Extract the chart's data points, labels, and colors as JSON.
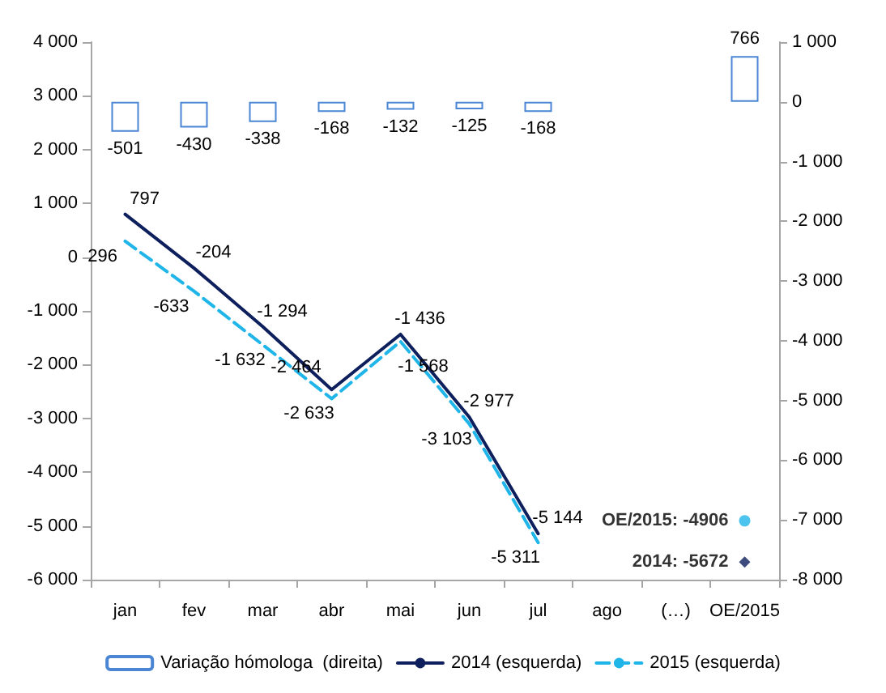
{
  "chart_data": {
    "type": "line",
    "categories": [
      "jan",
      "fev",
      "mar",
      "abr",
      "mai",
      "jun",
      "jul",
      "ago",
      "(…)",
      "OE/2015"
    ],
    "series": [
      {
        "name": "Variação hómologa  (direita)",
        "type": "bar",
        "axis": "y2",
        "color": "#4a86d4",
        "values": [
          -501,
          -430,
          -338,
          -168,
          -132,
          -125,
          -168,
          null,
          null,
          766
        ],
        "value_labels": [
          "-501",
          "-430",
          "-338",
          "-168",
          "-132",
          "-125",
          "-168",
          null,
          null,
          "766"
        ]
      },
      {
        "name": "2014 (esquerda)",
        "line_style": "solid",
        "color": "#0d1f5c",
        "values": [
          797,
          -204,
          -1294,
          -2464,
          -1436,
          -2977,
          -5144,
          null,
          null,
          null
        ],
        "value_labels": [
          "797",
          "-204",
          "-1 294",
          "-2 464",
          "-1 436",
          "-2 977",
          "-5 144",
          null,
          null,
          null
        ]
      },
      {
        "name": "2015 (esquerda)",
        "line_style": "dashed",
        "color": "#1fb5e8",
        "values": [
          296,
          -633,
          -1632,
          -2633,
          -1568,
          -3103,
          -5311,
          null,
          null,
          null
        ],
        "value_labels": [
          "296",
          "-633",
          "-1 632",
          "-2 633",
          "-1 568",
          "-3 103",
          "-5 311",
          null,
          null,
          null
        ]
      },
      {
        "type": "scatter",
        "marker": "circle",
        "color": "#1fb5e8",
        "values": [
          null,
          null,
          null,
          null,
          null,
          null,
          null,
          null,
          null,
          -4906
        ]
      },
      {
        "type": "scatter",
        "marker": "diamond",
        "color": "#0d1f5c",
        "values": [
          null,
          null,
          null,
          null,
          null,
          null,
          null,
          null,
          null,
          -5672
        ]
      }
    ],
    "annotations": [
      {
        "text": "OE/2015: -4906",
        "x": "OE/2015",
        "y": -4906
      },
      {
        "text": "2014: -5672",
        "x": "OE/2015",
        "y": -5672
      }
    ],
    "ylim": [
      -6000,
      4000
    ],
    "yticks": [
      {
        "value": -6000,
        "label": "-6 000"
      },
      {
        "value": -5000,
        "label": "-5 000"
      },
      {
        "value": -4000,
        "label": "-4 000"
      },
      {
        "value": -3000,
        "label": "-3 000"
      },
      {
        "value": -2000,
        "label": "-2 000"
      },
      {
        "value": -1000,
        "label": "-1 000"
      },
      0,
      {
        "value": 1000,
        "label": "1 000"
      },
      {
        "value": 2000,
        "label": "2 000"
      },
      {
        "value": 3000,
        "label": "3 000"
      },
      {
        "value": 4000,
        "label": "4 000"
      }
    ],
    "y2lim": [
      -8000,
      1000
    ],
    "y2ticks": [
      {
        "value": -8000,
        "label": "-8 000"
      },
      {
        "value": -7000,
        "label": "-7 000"
      },
      {
        "value": -6000,
        "label": "-6 000"
      },
      {
        "value": -5000,
        "label": "-5 000"
      },
      {
        "value": -4000,
        "label": "-4 000"
      },
      {
        "value": -3000,
        "label": "-3 000"
      },
      {
        "value": -2000,
        "label": "-2 000"
      },
      {
        "value": -1000,
        "label": "-1 000"
      },
      0,
      {
        "value": 1000,
        "label": "1 000"
      }
    ],
    "grid": false,
    "legend": "bottom"
  }
}
